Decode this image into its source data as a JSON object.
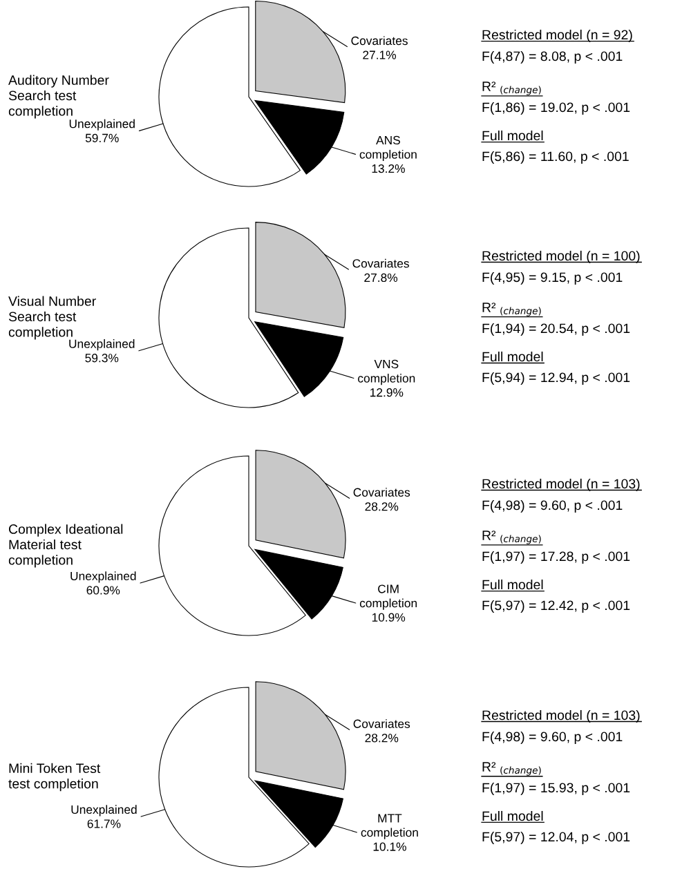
{
  "chart_data": [
    {
      "type": "pie",
      "title": "Auditory Number\nSearch test\ncompletion",
      "categories": [
        "Covariates",
        "ANS completion",
        "Unexplained"
      ],
      "values": [
        27.1,
        13.2,
        59.7
      ],
      "value_labels": [
        "27.1%",
        "13.2%",
        "59.7%"
      ],
      "colors": [
        "#c8c8c8",
        "#000000",
        "#ffffff"
      ],
      "legend": false,
      "annotations": [
        "Restricted model (n = 92)",
        "F(4,87) = 8.08, p < .001",
        "R² $_{(change)}$",
        "F(1,86) = 19.02, p < .001",
        "Full model",
        "F(5,86) = 11.60, p < .001"
      ]
    },
    {
      "type": "pie",
      "title": "Visual Number\nSearch test\ncompletion",
      "categories": [
        "Covariates",
        "VNS completion",
        "Unexplained"
      ],
      "values": [
        27.8,
        12.9,
        59.3
      ],
      "value_labels": [
        "27.8%",
        "12.9%",
        "59.3%"
      ],
      "colors": [
        "#c8c8c8",
        "#000000",
        "#ffffff"
      ],
      "legend": false,
      "annotations": [
        "Restricted model (n = 100)",
        "F(4,95) = 9.15, p < .001",
        "R² $_{(change)}$",
        "F(1,94) = 20.54, p < .001",
        "Full model",
        "F(5,94) = 12.94, p < .001"
      ]
    },
    {
      "type": "pie",
      "title": "Complex Ideational\nMaterial test\ncompletion",
      "categories": [
        "Covariates",
        "CIM completion",
        "Unexplained"
      ],
      "values": [
        28.2,
        10.9,
        60.9
      ],
      "value_labels": [
        "28.2%",
        "10.9%",
        "60.9%"
      ],
      "colors": [
        "#c8c8c8",
        "#000000",
        "#ffffff"
      ],
      "legend": false,
      "annotations": [
        "Restricted model (n = 103)",
        "F(4,98) = 9.60, p < .001",
        "R² $_{(change)}$",
        "F(1,97) = 17.28, p < .001",
        "Full model",
        "F(5,97) = 12.42, p < .001"
      ]
    },
    {
      "type": "pie",
      "title": "Mini Token Test\ntest completion",
      "categories": [
        "Covariates",
        "MTT completion",
        "Unexplained"
      ],
      "values": [
        28.2,
        10.1,
        61.7
      ],
      "value_labels": [
        "28.2%",
        "10.1%",
        "61.7%"
      ],
      "colors": [
        "#c8c8c8",
        "#000000",
        "#ffffff"
      ],
      "legend": false,
      "annotations": [
        "Restricted model (n = 103)",
        "F(4,98) = 9.60, p < .001",
        "R² $_{(change)}$",
        "F(1,97) = 15.93, p < .001",
        "Full model",
        "F(5,97) = 12.04, p < .001"
      ]
    }
  ]
}
